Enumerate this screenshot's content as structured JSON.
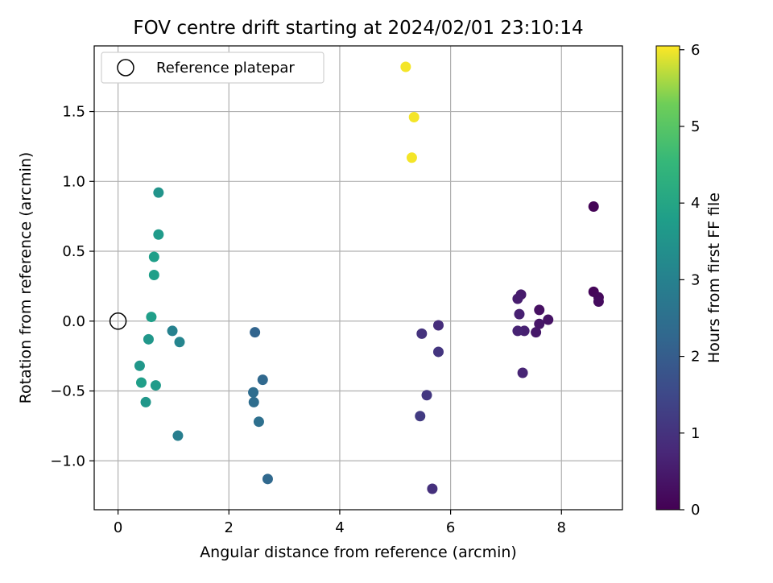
{
  "chart_data": {
    "type": "scatter",
    "title": "FOV centre drift starting at 2024/02/01 23:10:14",
    "xlabel": "Angular distance from reference (arcmin)",
    "ylabel": "Rotation from reference (arcmin)",
    "xlim": [
      -0.43,
      9.1
    ],
    "ylim": [
      -1.35,
      1.97
    ],
    "xticks": [
      0,
      2,
      4,
      6,
      8
    ],
    "yticks": [
      -1.0,
      -0.5,
      0.0,
      0.5,
      1.0,
      1.5
    ],
    "xtick_labels": [
      "0",
      "2",
      "4",
      "6",
      "8"
    ],
    "ytick_labels": [
      "−1.0",
      "−0.5",
      "0.0",
      "0.5",
      "1.0",
      "1.5"
    ],
    "grid": true,
    "legend": {
      "position": "top-left",
      "entries": [
        "Reference platepar"
      ]
    },
    "reference_point": {
      "x": 0,
      "y": 0,
      "label": "Reference platepar"
    },
    "colorbar": {
      "label": "Hours from first FF file",
      "colormap": "viridis",
      "range": [
        0,
        6.05
      ],
      "ticks": [
        0,
        1,
        2,
        3,
        4,
        5,
        6
      ],
      "tick_labels": [
        "0",
        "1",
        "2",
        "3",
        "4",
        "5",
        "6"
      ]
    },
    "points": [
      {
        "x": 8.58,
        "y": 0.82,
        "h": 0.05
      },
      {
        "x": 8.58,
        "y": 0.21,
        "h": 0.1
      },
      {
        "x": 8.67,
        "y": 0.17,
        "h": 0.15
      },
      {
        "x": 8.67,
        "y": 0.14,
        "h": 0.2
      },
      {
        "x": 7.6,
        "y": 0.08,
        "h": 0.3
      },
      {
        "x": 7.76,
        "y": 0.01,
        "h": 0.35
      },
      {
        "x": 7.6,
        "y": -0.02,
        "h": 0.4
      },
      {
        "x": 7.54,
        "y": -0.08,
        "h": 0.45
      },
      {
        "x": 7.27,
        "y": 0.19,
        "h": 0.5
      },
      {
        "x": 7.21,
        "y": 0.16,
        "h": 0.55
      },
      {
        "x": 7.24,
        "y": 0.05,
        "h": 0.6
      },
      {
        "x": 7.33,
        "y": -0.07,
        "h": 0.6
      },
      {
        "x": 7.21,
        "y": -0.07,
        "h": 0.65
      },
      {
        "x": 7.3,
        "y": -0.37,
        "h": 0.7
      },
      {
        "x": 5.78,
        "y": -0.03,
        "h": 0.9
      },
      {
        "x": 5.48,
        "y": -0.09,
        "h": 1.0
      },
      {
        "x": 5.78,
        "y": -0.22,
        "h": 1.05
      },
      {
        "x": 5.57,
        "y": -0.53,
        "h": 1.1
      },
      {
        "x": 5.45,
        "y": -0.68,
        "h": 1.2
      },
      {
        "x": 5.67,
        "y": -1.2,
        "h": 0.95
      },
      {
        "x": 2.47,
        "y": -0.08,
        "h": 2.2
      },
      {
        "x": 2.61,
        "y": -0.42,
        "h": 2.3
      },
      {
        "x": 2.44,
        "y": -0.51,
        "h": 2.4
      },
      {
        "x": 2.45,
        "y": -0.58,
        "h": 2.4
      },
      {
        "x": 2.54,
        "y": -0.72,
        "h": 2.5
      },
      {
        "x": 2.7,
        "y": -1.13,
        "h": 2.3
      },
      {
        "x": 0.98,
        "y": -0.07,
        "h": 3.0
      },
      {
        "x": 1.11,
        "y": -0.15,
        "h": 3.1
      },
      {
        "x": 1.08,
        "y": -0.82,
        "h": 2.9
      },
      {
        "x": 0.73,
        "y": 0.92,
        "h": 3.5
      },
      {
        "x": 0.73,
        "y": 0.62,
        "h": 3.7
      },
      {
        "x": 0.65,
        "y": 0.46,
        "h": 3.8
      },
      {
        "x": 0.65,
        "y": 0.33,
        "h": 3.8
      },
      {
        "x": 0.6,
        "y": 0.03,
        "h": 3.8
      },
      {
        "x": 0.55,
        "y": -0.13,
        "h": 3.6
      },
      {
        "x": 0.39,
        "y": -0.32,
        "h": 3.6
      },
      {
        "x": 0.42,
        "y": -0.44,
        "h": 3.8
      },
      {
        "x": 0.68,
        "y": -0.46,
        "h": 3.7
      },
      {
        "x": 0.5,
        "y": -0.58,
        "h": 3.6
      },
      {
        "x": 5.19,
        "y": 1.82,
        "h": 6.0
      },
      {
        "x": 5.34,
        "y": 1.46,
        "h": 6.0
      },
      {
        "x": 5.3,
        "y": 1.17,
        "h": 6.0
      }
    ]
  }
}
